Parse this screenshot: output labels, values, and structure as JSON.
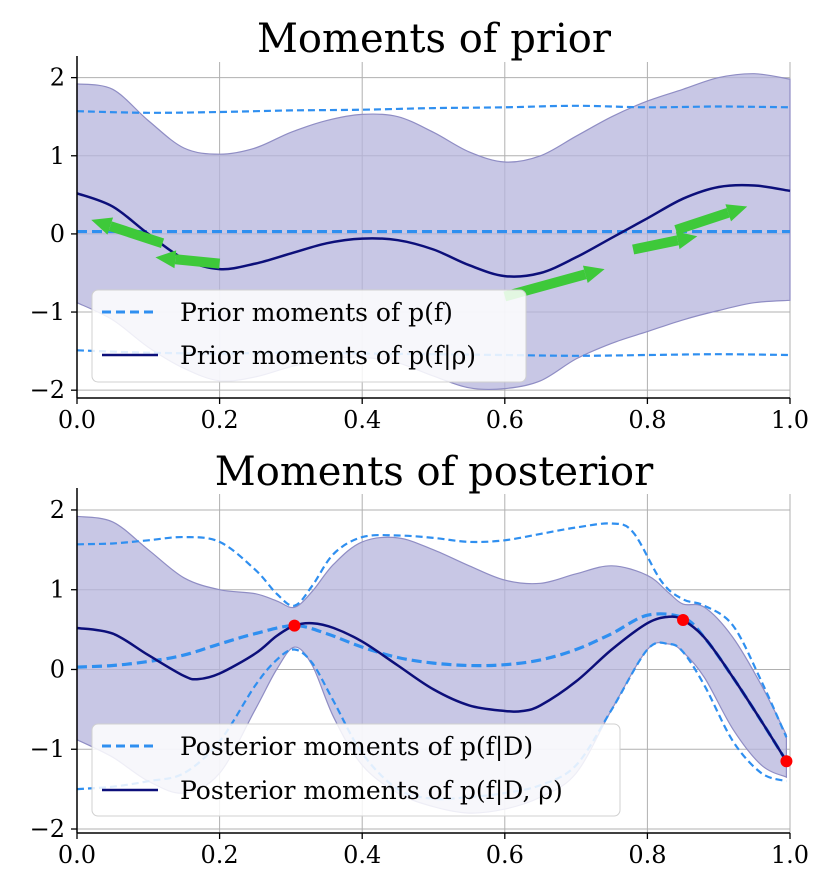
{
  "chart_data": [
    {
      "type": "line",
      "title": "Moments of prior",
      "xlabel": "",
      "ylabel": "",
      "xlim": [
        0.0,
        1.0
      ],
      "ylim": [
        -2.1,
        2.2
      ],
      "xticks": [
        "0.0",
        "0.2",
        "0.4",
        "0.6",
        "0.8",
        "1.0"
      ],
      "yticks": [
        "2",
        "1",
        "0",
        "−1",
        "−2"
      ],
      "grid": true,
      "legend_position": "lower-left",
      "legend": [
        "Prior moments of p(f)",
        "Prior moments of p(f|ρ)"
      ],
      "colors": {
        "band": "#b6b4dc",
        "band_edge": "#8f8dc4",
        "dashed": "#2f8ff0",
        "solid": "#0c0f7a",
        "arrow": "#3ec93a"
      },
      "series": [
        {
          "name": "Prior moments of p(f|ρ)",
          "role": "band_upper",
          "x": [
            0.0,
            0.05,
            0.1,
            0.15,
            0.2,
            0.25,
            0.3,
            0.35,
            0.4,
            0.45,
            0.5,
            0.55,
            0.6,
            0.65,
            0.7,
            0.75,
            0.8,
            0.85,
            0.9,
            0.95,
            1.0
          ],
          "y": [
            1.92,
            1.85,
            1.45,
            1.1,
            1.02,
            1.1,
            1.3,
            1.45,
            1.53,
            1.5,
            1.3,
            1.05,
            0.92,
            1.0,
            1.25,
            1.5,
            1.7,
            1.85,
            2.0,
            2.05,
            1.98
          ]
        },
        {
          "name": "Prior moments of p(f|ρ)",
          "role": "band_lower",
          "x": [
            0.0,
            0.05,
            0.1,
            0.15,
            0.2,
            0.25,
            0.3,
            0.35,
            0.4,
            0.45,
            0.5,
            0.55,
            0.6,
            0.65,
            0.7,
            0.75,
            0.8,
            0.85,
            0.9,
            0.95,
            1.0
          ],
          "y": [
            -0.88,
            -1.1,
            -1.45,
            -1.72,
            -1.88,
            -1.83,
            -1.7,
            -1.6,
            -1.58,
            -1.65,
            -1.82,
            -1.97,
            -1.98,
            -1.88,
            -1.6,
            -1.4,
            -1.25,
            -1.1,
            -0.98,
            -0.88,
            -0.85
          ]
        },
        {
          "name": "Prior moments of p(f|ρ)",
          "role": "mean",
          "x": [
            0.0,
            0.05,
            0.1,
            0.15,
            0.2,
            0.25,
            0.3,
            0.35,
            0.4,
            0.45,
            0.5,
            0.55,
            0.6,
            0.65,
            0.7,
            0.75,
            0.8,
            0.85,
            0.9,
            0.95,
            1.0
          ],
          "y": [
            0.52,
            0.35,
            0.0,
            -0.32,
            -0.45,
            -0.38,
            -0.25,
            -0.12,
            -0.06,
            -0.08,
            -0.2,
            -0.4,
            -0.54,
            -0.5,
            -0.3,
            -0.05,
            0.2,
            0.45,
            0.6,
            0.62,
            0.55
          ]
        },
        {
          "name": "Prior moments of p(f)",
          "role": "mean",
          "x": [
            0.0,
            1.0
          ],
          "y": [
            0.03,
            0.03
          ]
        },
        {
          "name": "Prior moments of p(f)",
          "role": "upper",
          "x": [
            0.0,
            0.1,
            0.2,
            0.3,
            0.4,
            0.5,
            0.6,
            0.7,
            0.8,
            0.9,
            1.0
          ],
          "y": [
            1.57,
            1.55,
            1.56,
            1.58,
            1.59,
            1.61,
            1.62,
            1.64,
            1.62,
            1.63,
            1.62
          ]
        },
        {
          "name": "Prior moments of p(f)",
          "role": "lower",
          "x": [
            0.0,
            0.1,
            0.2,
            0.3,
            0.4,
            0.5,
            0.6,
            0.7,
            0.8,
            0.9,
            1.0
          ],
          "y": [
            -1.49,
            -1.52,
            -1.53,
            -1.52,
            -1.53,
            -1.54,
            -1.55,
            -1.56,
            -1.55,
            -1.54,
            -1.55
          ]
        }
      ],
      "arrows": [
        {
          "x1": 0.12,
          "y1": -0.12,
          "x2": 0.02,
          "y2": 0.18
        },
        {
          "x1": 0.2,
          "y1": -0.38,
          "x2": 0.11,
          "y2": -0.3
        },
        {
          "x1": 0.6,
          "y1": -0.8,
          "x2": 0.74,
          "y2": -0.45
        },
        {
          "x1": 0.78,
          "y1": -0.2,
          "x2": 0.87,
          "y2": -0.03
        },
        {
          "x1": 0.84,
          "y1": 0.05,
          "x2": 0.94,
          "y2": 0.35
        }
      ]
    },
    {
      "type": "line",
      "title": "Moments of posterior",
      "xlabel": "",
      "ylabel": "",
      "xlim": [
        0.0,
        1.0
      ],
      "ylim": [
        -2.05,
        2.2
      ],
      "xticks": [
        "0.0",
        "0.2",
        "0.4",
        "0.6",
        "0.8",
        "1.0"
      ],
      "yticks": [
        "2",
        "1",
        "0",
        "−1",
        "−2"
      ],
      "grid": true,
      "legend_position": "lower-left",
      "legend": [
        "Posterior moments of p(f|D)",
        "Posterior moments of p(f|D, ρ)"
      ],
      "colors": {
        "band": "#b6b4dc",
        "band_edge": "#8f8dc4",
        "dashed": "#2f8ff0",
        "solid": "#0c0f7a",
        "points": "#ff0000"
      },
      "observations": {
        "x": [
          0.305,
          0.85,
          0.995
        ],
        "y": [
          0.55,
          0.62,
          -1.15
        ]
      },
      "series": [
        {
          "name": "Posterior moments of p(f|D, ρ)",
          "role": "band_upper",
          "x": [
            0.0,
            0.05,
            0.1,
            0.15,
            0.2,
            0.25,
            0.28,
            0.305,
            0.33,
            0.36,
            0.4,
            0.45,
            0.5,
            0.55,
            0.6,
            0.65,
            0.7,
            0.75,
            0.8,
            0.83,
            0.85,
            0.88,
            0.92,
            0.96,
            0.995
          ],
          "y": [
            1.92,
            1.85,
            1.5,
            1.15,
            1.0,
            0.95,
            0.86,
            0.78,
            0.98,
            1.32,
            1.6,
            1.65,
            1.5,
            1.3,
            1.12,
            1.08,
            1.2,
            1.3,
            1.18,
            0.96,
            0.82,
            0.78,
            0.4,
            -0.2,
            -0.82
          ]
        },
        {
          "name": "Posterior moments of p(f|D, ρ)",
          "role": "band_lower",
          "x": [
            0.0,
            0.05,
            0.1,
            0.15,
            0.2,
            0.25,
            0.28,
            0.305,
            0.33,
            0.36,
            0.4,
            0.45,
            0.5,
            0.55,
            0.6,
            0.65,
            0.7,
            0.75,
            0.8,
            0.83,
            0.85,
            0.88,
            0.92,
            0.96,
            0.995
          ],
          "y": [
            -0.88,
            -1.1,
            -1.4,
            -1.55,
            -1.3,
            -0.5,
            0.0,
            0.28,
            0.05,
            -0.6,
            -1.2,
            -1.55,
            -1.72,
            -1.8,
            -1.75,
            -1.6,
            -1.3,
            -0.5,
            0.25,
            0.32,
            0.22,
            -0.1,
            -0.75,
            -1.2,
            -1.35
          ]
        },
        {
          "name": "Posterior moments of p(f|D, ρ)",
          "role": "mean",
          "x": [
            0.0,
            0.05,
            0.1,
            0.15,
            0.17,
            0.2,
            0.25,
            0.28,
            0.305,
            0.33,
            0.36,
            0.4,
            0.45,
            0.5,
            0.55,
            0.6,
            0.625,
            0.65,
            0.7,
            0.75,
            0.8,
            0.83,
            0.85,
            0.88,
            0.92,
            0.96,
            0.995
          ],
          "y": [
            0.52,
            0.45,
            0.18,
            -0.08,
            -0.12,
            -0.05,
            0.2,
            0.42,
            0.55,
            0.58,
            0.52,
            0.35,
            0.05,
            -0.25,
            -0.45,
            -0.52,
            -0.52,
            -0.45,
            -0.15,
            0.25,
            0.58,
            0.66,
            0.62,
            0.4,
            -0.1,
            -0.65,
            -1.15
          ]
        },
        {
          "name": "Posterior moments of p(f|D)",
          "role": "mean",
          "x": [
            0.0,
            0.05,
            0.1,
            0.15,
            0.2,
            0.25,
            0.305,
            0.35,
            0.4,
            0.45,
            0.5,
            0.55,
            0.6,
            0.65,
            0.7,
            0.75,
            0.8,
            0.85,
            0.88,
            0.92,
            0.96,
            0.995
          ],
          "y": [
            0.03,
            0.05,
            0.1,
            0.18,
            0.32,
            0.45,
            0.55,
            0.45,
            0.28,
            0.15,
            0.08,
            0.05,
            0.06,
            0.12,
            0.25,
            0.45,
            0.68,
            0.65,
            0.4,
            -0.1,
            -0.65,
            -1.15
          ]
        },
        {
          "name": "Posterior moments of p(f|D)",
          "role": "upper",
          "x": [
            0.0,
            0.05,
            0.1,
            0.15,
            0.2,
            0.25,
            0.28,
            0.305,
            0.33,
            0.36,
            0.4,
            0.45,
            0.5,
            0.55,
            0.6,
            0.65,
            0.7,
            0.75,
            0.78,
            0.82,
            0.85,
            0.88,
            0.92,
            0.96,
            0.995
          ],
          "y": [
            1.57,
            1.58,
            1.62,
            1.66,
            1.6,
            1.25,
            0.95,
            0.8,
            1.05,
            1.45,
            1.66,
            1.68,
            1.65,
            1.6,
            1.62,
            1.7,
            1.78,
            1.83,
            1.72,
            1.1,
            0.88,
            0.8,
            0.55,
            -0.15,
            -0.85
          ]
        },
        {
          "name": "Posterior moments of p(f|D)",
          "role": "lower",
          "x": [
            0.0,
            0.05,
            0.1,
            0.15,
            0.2,
            0.25,
            0.28,
            0.305,
            0.33,
            0.36,
            0.4,
            0.45,
            0.5,
            0.55,
            0.6,
            0.65,
            0.7,
            0.75,
            0.8,
            0.83,
            0.85,
            0.88,
            0.92,
            0.96,
            0.995
          ],
          "y": [
            -1.5,
            -1.47,
            -1.4,
            -1.3,
            -0.9,
            -0.2,
            0.12,
            0.25,
            0.08,
            -0.4,
            -1.05,
            -1.5,
            -1.62,
            -1.6,
            -1.55,
            -1.45,
            -1.2,
            -0.5,
            0.25,
            0.32,
            0.22,
            -0.2,
            -0.9,
            -1.3,
            -1.4
          ]
        }
      ]
    }
  ]
}
